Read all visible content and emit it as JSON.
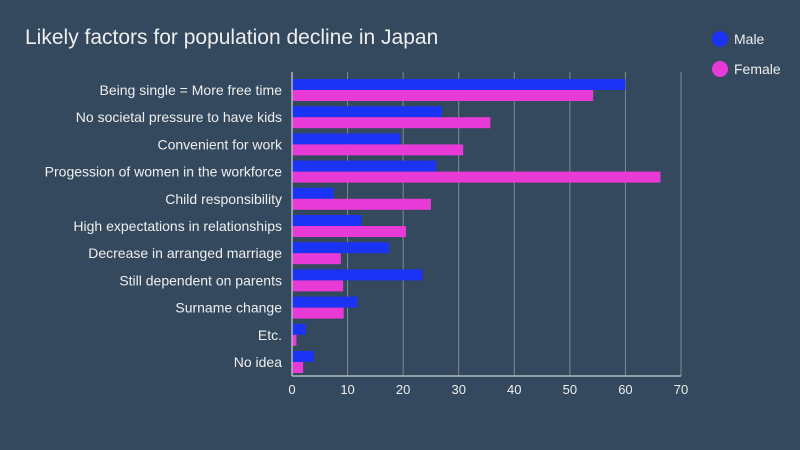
{
  "chart_data": {
    "type": "bar",
    "orientation": "horizontal",
    "title": "Likely factors for population decline in Japan",
    "categories": [
      "Being single = More free time",
      "No societal pressure to have kids",
      "Convenient for work",
      "Progession of women in the workforce",
      "Child responsibility",
      "High expectations in relationships",
      "Decrease in arranged marriage",
      "Still dependent on parents",
      "Surname change",
      "Etc.",
      "No idea"
    ],
    "series": [
      {
        "name": "Male",
        "color": "#1a33f5",
        "values": [
          60,
          27,
          19.5,
          26,
          7.5,
          12.5,
          17.5,
          23.5,
          11.8,
          2.5,
          4
        ]
      },
      {
        "name": "Female",
        "color": "#e83ad6",
        "values": [
          54.2,
          35.7,
          30.8,
          66.3,
          25,
          20.5,
          8.8,
          9.2,
          9.3,
          0.8,
          2
        ]
      }
    ],
    "xlim": [
      0,
      70
    ],
    "x_ticks": [
      "0",
      "10",
      "20",
      "30",
      "40",
      "50",
      "60",
      "70"
    ],
    "grid": true,
    "legend_position": "top-right",
    "xlabel": "",
    "ylabel": ""
  }
}
